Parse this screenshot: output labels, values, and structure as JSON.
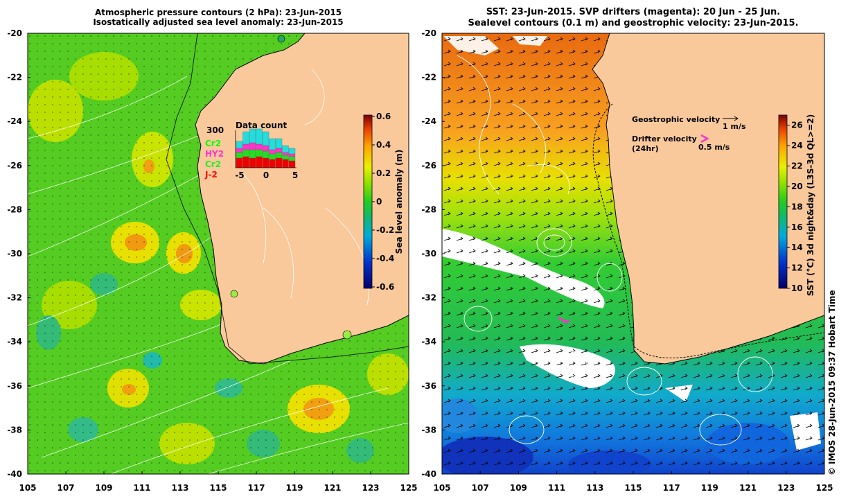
{
  "left_panel": {
    "title_line1": "Atmospheric pressure contours (2 hPa): 23-Jun-2015",
    "title_line2": "Isostatically adjusted sea level anomaly: 23-Jun-2015",
    "colorbar": {
      "label": "Sea level anomaly (m)",
      "ticks": [
        "0.6",
        "0.4",
        "0.2",
        "0",
        "-0.2",
        "-0.4",
        "-0.6"
      ],
      "range": [
        -0.6,
        0.6
      ]
    },
    "inset": {
      "title": "Data count",
      "ymax_label": "300",
      "legend": [
        {
          "name": "Cr2",
          "color": "#00ff00"
        },
        {
          "name": "HY2",
          "color": "#ff33cc"
        },
        {
          "name": "Cr2",
          "color": "#22ee22"
        },
        {
          "name": "J-2",
          "color": "#ff0000"
        }
      ],
      "x_ticks": [
        "-5",
        "0",
        "5"
      ]
    }
  },
  "right_panel": {
    "title_line1": "SST: 23-Jun-2015. SVP drifters (magenta): 20 Jun - 25 Jun.",
    "title_line2": "Sealevel contours (0.1 m) and geostrophic velocity: 23-Jun-2015.",
    "colorbar": {
      "label": "SST (°C) 3d night&day (L3S-3d QL>=2)",
      "ticks": [
        "26",
        "24",
        "22",
        "20",
        "18",
        "16",
        "14",
        "12",
        "10"
      ],
      "range": [
        10,
        27
      ]
    },
    "geostrophic_label": "Geostrophic velocity",
    "geostrophic_scale": "1 m/s",
    "drifter_label1": "Drifter velocity",
    "drifter_label2": "(24hr)",
    "drifter_scale": "0.5 m/s"
  },
  "axes": {
    "lat_ticks": [
      "-20",
      "-22",
      "-24",
      "-26",
      "-28",
      "-30",
      "-32",
      "-34",
      "-36",
      "-38",
      "-40"
    ],
    "lon_ticks": [
      "105",
      "107",
      "109",
      "111",
      "113",
      "115",
      "117",
      "119",
      "121",
      "123",
      "125"
    ]
  },
  "colors": {
    "land": "#f9c99b",
    "coast": "#000000"
  },
  "copyright": "© IMOS 28-Jun-2015 09:37 Hobart Time"
}
